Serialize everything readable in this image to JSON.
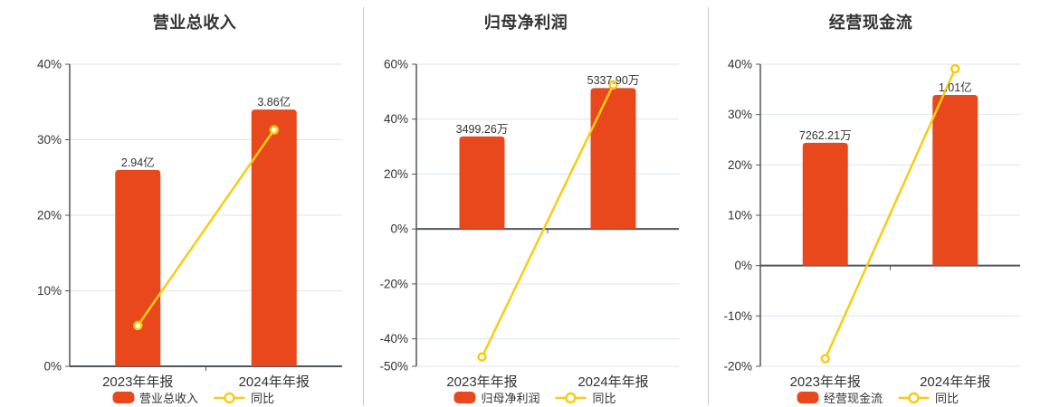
{
  "colors": {
    "bar": "#E8481C",
    "line": "#F8CC12",
    "grid": "#DCE4F2",
    "axis": "#50545F",
    "text": "#333333",
    "divider": "#C8C8C8",
    "marker_fill": "#FFFFFF",
    "background": "#FFFFFF"
  },
  "chart_data": [
    {
      "type": "bar+line",
      "title": "营业总收入",
      "categories": [
        "2023年年报",
        "2024年年报"
      ],
      "bar_series": {
        "name": "营业总收入",
        "value_labels": [
          "2.94亿",
          "3.86亿"
        ],
        "plotted_pct": [
          26.0,
          34.0
        ]
      },
      "line_series": {
        "name": "同比",
        "values_pct": [
          5.4,
          31.3
        ]
      },
      "y_axis": {
        "min": 0,
        "max": 40,
        "ticks": [
          40,
          30,
          20,
          10,
          0
        ],
        "tick_labels": [
          "40%",
          "30%",
          "20%",
          "10%",
          "0%"
        ]
      },
      "legend_position": "bottom",
      "grid": true
    },
    {
      "type": "bar+line",
      "title": "归母净利润",
      "categories": [
        "2023年年报",
        "2024年年报"
      ],
      "bar_series": {
        "name": "归母净利润",
        "value_labels": [
          "3499.26万",
          "5337.90万"
        ],
        "plotted_pct": [
          33.7,
          51.3
        ]
      },
      "line_series": {
        "name": "同比",
        "values_pct": [
          -46.6,
          52.5
        ]
      },
      "y_axis": {
        "min": -50,
        "max": 60,
        "ticks": [
          60,
          40,
          20,
          0,
          -20,
          -40,
          -50
        ],
        "tick_labels": [
          "60%",
          "40%",
          "20%",
          "0%",
          "-20%",
          "-40%",
          "-50%"
        ]
      },
      "legend_position": "bottom",
      "grid": true
    },
    {
      "type": "bar+line",
      "title": "经营现金流",
      "categories": [
        "2023年年报",
        "2024年年报"
      ],
      "bar_series": {
        "name": "经营现金流",
        "value_labels": [
          "7262.21万",
          "1.01亿"
        ],
        "plotted_pct": [
          24.4,
          33.9
        ]
      },
      "line_series": {
        "name": "同比",
        "values_pct": [
          -18.5,
          39.1
        ]
      },
      "y_axis": {
        "min": -20,
        "max": 40,
        "ticks": [
          40,
          30,
          20,
          10,
          0,
          -10,
          -20
        ],
        "tick_labels": [
          "40%",
          "30%",
          "20%",
          "10%",
          "0%",
          "-10%",
          "-20%"
        ]
      },
      "legend_position": "bottom",
      "grid": true
    }
  ]
}
